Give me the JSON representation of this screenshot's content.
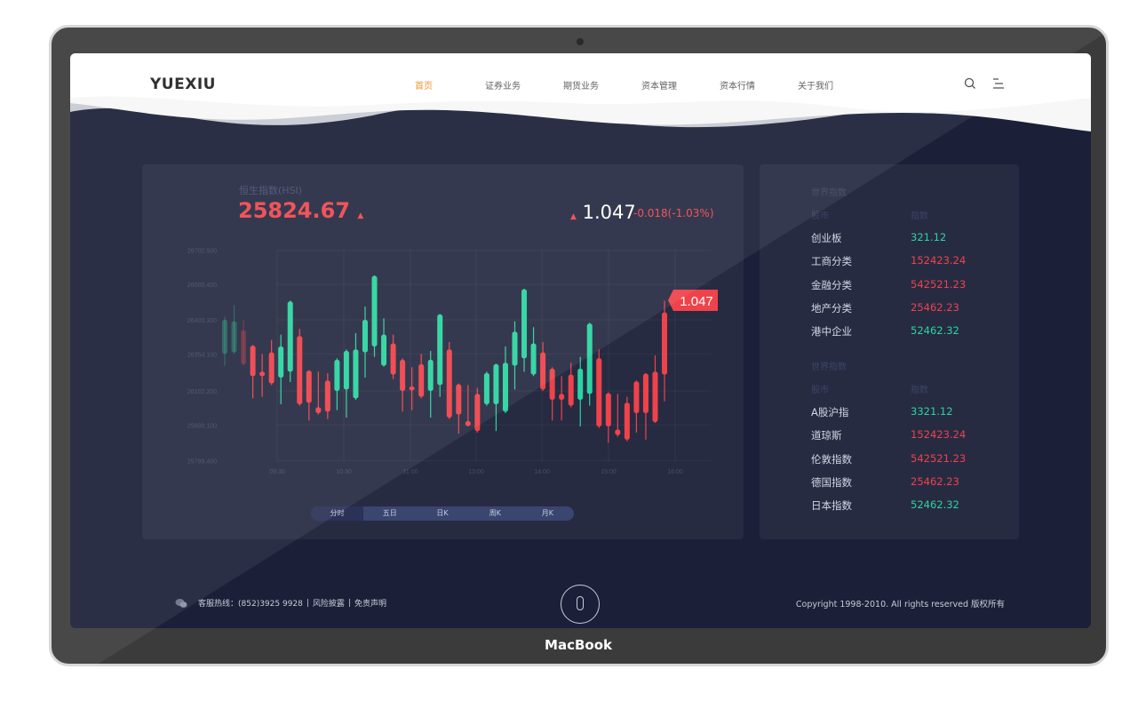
{
  "device": {
    "brand": "MacBook"
  },
  "header": {
    "logo": "YUEXIU",
    "nav": [
      {
        "label": "首页",
        "active": true
      },
      {
        "label": "证券业务"
      },
      {
        "label": "期货业务"
      },
      {
        "label": "资本管理"
      },
      {
        "label": "资本行情"
      },
      {
        "label": "关于我们"
      }
    ],
    "icons": [
      "search-icon",
      "menu-icon"
    ],
    "active_color": "#f08a24"
  },
  "quote": {
    "label": "恒生指数(HSI)",
    "value": "25824.67",
    "rate": "1.047",
    "change": "-0.018(-1.03%)",
    "tag": "1.047"
  },
  "chart_data": {
    "type": "candlestick",
    "y_ticks": [
      "26702.500",
      "26500.400",
      "26400.300",
      "26354.100",
      "26102.200",
      "25800.100",
      "25799.400"
    ],
    "x_ticks": [
      "09:30",
      "10:30",
      "11:00",
      "13:00",
      "14:00",
      "15:00",
      "16:00"
    ],
    "up_color": "#f0424a",
    "down_color": "#2bd4a0",
    "last_price_label": "1.047",
    "candles_ohlc": [
      [
        26400.3,
        26408.7,
        26273.5,
        26354.1
      ],
      [
        26398.3,
        26442.0,
        26354.1,
        26356.1
      ],
      [
        26283.6,
        26400.3,
        26273.5,
        26386.2
      ],
      [
        26203.0,
        26366.2,
        26036.5,
        26365.0
      ],
      [
        26203.0,
        26354.1,
        26049.7,
        26233.2
      ],
      [
        26152.6,
        26373.0,
        26142.6,
        26356.1
      ],
      [
        26364.1,
        26380.2,
        25984.0,
        26192.9
      ],
      [
        26452.0,
        26454.5,
        26162.7,
        26233.2
      ],
      [
        25984.0,
        26388.2,
        25970.9,
        26378.2
      ],
      [
        25997.1,
        26243.3,
        25839.5,
        26239.2
      ],
      [
        25905.2,
        26233.2,
        25892.1,
        25957.7
      ],
      [
        25918.3,
        26223.1,
        25852.6,
        26172.8
      ],
      [
        26313.8,
        26323.9,
        25931.5,
        26102.2
      ],
      [
        26358.1,
        26360.1,
        25865.8,
        26112.3
      ],
      [
        26360.1,
        26382.2,
        26023.4,
        26036.5
      ],
      [
        26400.3,
        26437.9,
        26192.9,
        26356.1
      ],
      [
        26549.6,
        26553.2,
        26334.0,
        26364.1
      ],
      [
        26380.2,
        26404.6,
        26267.5,
        26273.5
      ],
      [
        26213.1,
        26380.2,
        26182.8,
        26368.2
      ],
      [
        26102.2,
        26323.9,
        25918.3,
        26313.8
      ],
      [
        26106.2,
        26263.4,
        25931.5,
        26132.5
      ],
      [
        26049.7,
        26354.1,
        26036.5,
        26283.6
      ],
      [
        26313.8,
        26358.1,
        25865.8,
        26102.2
      ],
      [
        26415.3,
        26417.0,
        26049.7,
        26142.6
      ],
      [
        25865.8,
        26370.2,
        25852.6,
        26360.1
      ],
      [
        25892.1,
        26152.6,
        25799.93,
        26146.6
      ],
      [
        25800.08,
        26142.6,
        25800.07,
        25834.2
      ],
      [
        25799.98,
        26122.4,
        25799.95,
        26075.9
      ],
      [
        26223.1,
        26233.2,
        25970.9,
        25984.0
      ],
      [
        26283.6,
        26287.6,
        25799.98,
        25984.0
      ],
      [
        26293.6,
        26364.1,
        25905.2,
        25918.3
      ],
      [
        26384.2,
        26398.3,
        26112.3,
        26273.5
      ],
      [
        26486.2,
        26487.9,
        26233.2,
        26323.9
      ],
      [
        26368.2,
        26390.3,
        26203.0,
        26213.1
      ],
      [
        26112.3,
        26370.2,
        26102.2,
        26356.1
      ],
      [
        26023.4,
        26263.4,
        25839.5,
        26253.4
      ],
      [
        26023.4,
        26203.0,
        25839.5,
        26075.9
      ],
      [
        25970.9,
        26293.6,
        25957.7,
        26213.1
      ],
      [
        26253.4,
        26334.0,
        25800.07,
        26023.4
      ],
      [
        26395.1,
        26396.3,
        25970.9,
        26075.9
      ],
      [
        25800.07,
        26360.1,
        25800.04,
        26323.9
      ],
      [
        25800.07,
        26089.1,
        25799.75,
        26081.2
      ],
      [
        25799.9,
        26075.9,
        25799.87,
        25800.01
      ],
      [
        25799.81,
        26049.7,
        25799.78,
        25997.1
      ],
      [
        25905.2,
        26172.8,
        25799.95,
        26166.7
      ],
      [
        25905.2,
        26223.1,
        25799.81,
        26219.1
      ],
      [
        25826.4,
        26344.0,
        25818.5,
        26233.2
      ],
      [
        26213.1,
        26454.5,
        26010.3,
        26421.2
      ]
    ]
  },
  "period_tabs": [
    {
      "label": "分时",
      "active": true
    },
    {
      "label": "五日"
    },
    {
      "label": "日K"
    },
    {
      "label": "周K"
    },
    {
      "label": "月K"
    }
  ],
  "indices": [
    {
      "title": "世界指数",
      "col1": "股市",
      "col2": "指数",
      "rows": [
        {
          "name": "创业板",
          "value": "321.12",
          "trend": "down"
        },
        {
          "name": "工商分类",
          "value": "152423.24",
          "trend": "up"
        },
        {
          "name": "金融分类",
          "value": "542521.23",
          "trend": "up"
        },
        {
          "name": "地产分类",
          "value": "25462.23",
          "trend": "up"
        },
        {
          "name": "港中企业",
          "value": "52462.32",
          "trend": "down"
        }
      ]
    },
    {
      "title": "世界指数",
      "col1": "股市",
      "col2": "指数",
      "rows": [
        {
          "name": "A股沪指",
          "value": "3321.12",
          "trend": "down"
        },
        {
          "name": "道琼斯",
          "value": "152423.24",
          "trend": "up"
        },
        {
          "name": "伦敦指数",
          "value": "542521.23",
          "trend": "up"
        },
        {
          "name": "德国指数",
          "value": "25462.23",
          "trend": "up"
        },
        {
          "name": "日本指数",
          "value": "52462.32",
          "trend": "down"
        }
      ]
    }
  ],
  "colors": {
    "up": "#f0424a",
    "down": "#2bd4a0"
  },
  "footer": {
    "hotline": "客服热线：(852)3925 9928",
    "risk": "风险披露",
    "disclaimer": "免责声明",
    "separator": "|",
    "copyright": "Copyright 1998-2010. All rights reserved 版权所有"
  }
}
